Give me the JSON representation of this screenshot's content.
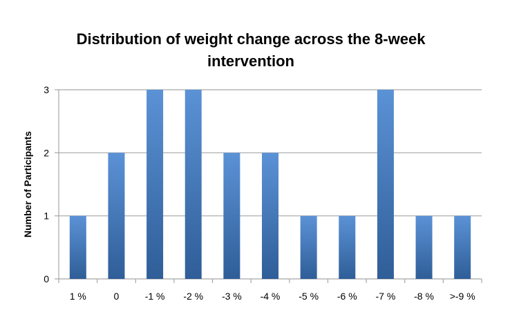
{
  "chart_data": {
    "type": "bar",
    "title": "Distribution of weight change across the 8-week intervention",
    "title_lines": [
      "Distribution of weight change across the 8-week",
      "intervention"
    ],
    "xlabel": "",
    "ylabel": "Number of Participants",
    "categories": [
      "1 %",
      "0",
      "-1 %",
      "-2 %",
      "-3 %",
      "-4 %",
      "-5 %",
      "-6 %",
      "-7 %",
      "-8 %",
      ">-9 %"
    ],
    "values": [
      1,
      2,
      3,
      3,
      2,
      2,
      1,
      1,
      3,
      1,
      1
    ],
    "ylim": [
      0,
      3
    ],
    "yticks": [
      0,
      1,
      2,
      3
    ],
    "grid": true,
    "legend": "none",
    "bar_color": "#4a7fc1",
    "bar_color_light": "#5b92d6",
    "bar_color_dark": "#2f5e98",
    "grid_color": "#a6a6a6",
    "axis_color": "#a6a6a6"
  }
}
